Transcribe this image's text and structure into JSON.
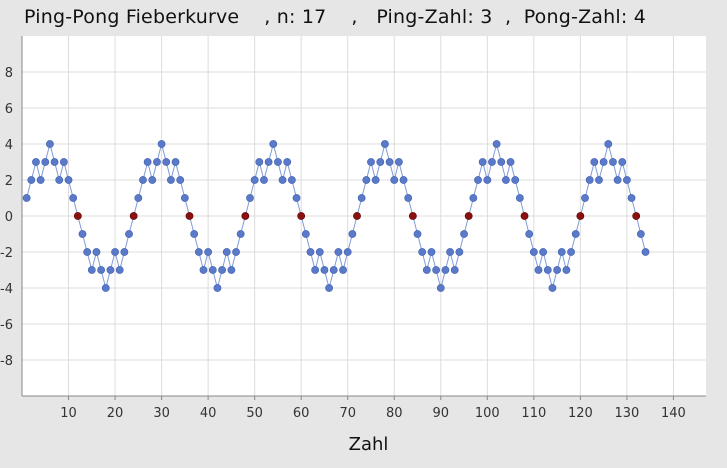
{
  "chart_data": {
    "type": "line",
    "title": "Ping-Pong Fieberkurve    , n: 17    ,   Ping-Zahl: 3  ,  Pong-Zahl: 4",
    "xlabel": "Zahl",
    "ylabel": "",
    "xlim": [
      0,
      147
    ],
    "ylim": [
      -10,
      10
    ],
    "x_ticks": [
      10,
      20,
      30,
      40,
      50,
      60,
      70,
      80,
      90,
      100,
      110,
      120,
      130,
      140
    ],
    "y_ticks": [
      8,
      6,
      4,
      2,
      0,
      -2,
      -4,
      -6,
      -8
    ],
    "grid": true,
    "colors": {
      "line": "#7f9cd8",
      "point": "#5a79c8",
      "zero_point": "#8b1010",
      "plot_background": "#ffffff",
      "grid": "#dcdcdc"
    },
    "series": [
      {
        "x": [
          1,
          2,
          3,
          4,
          5,
          6,
          7,
          8,
          9,
          10,
          11,
          12,
          13,
          14,
          15,
          16,
          17,
          18,
          19,
          20,
          21,
          22,
          23,
          24,
          25,
          26,
          27,
          28,
          29,
          30,
          31,
          32,
          33,
          34,
          35,
          36,
          37,
          38,
          39,
          40,
          41,
          42,
          43,
          44,
          45,
          46,
          47,
          48,
          49,
          50,
          51,
          52,
          53,
          54,
          55,
          56,
          57,
          58,
          59,
          60,
          61,
          62,
          63,
          64,
          65,
          66,
          67,
          68,
          69,
          70,
          71,
          72,
          73,
          74,
          75,
          76,
          77,
          78,
          79,
          80,
          81,
          82,
          83,
          84,
          85,
          86,
          87,
          88,
          89,
          90,
          91,
          92,
          93,
          94,
          95,
          96,
          97,
          98,
          99,
          100,
          101,
          102,
          103,
          104,
          105,
          106,
          107,
          108,
          109,
          110,
          111,
          112,
          113,
          114,
          115,
          116,
          117,
          118,
          119,
          120,
          121,
          122,
          123,
          124,
          125,
          126,
          127,
          128,
          129,
          130,
          131,
          132,
          133,
          134
        ],
        "values": [
          1,
          2,
          3,
          2,
          3,
          4,
          3,
          2,
          3,
          2,
          1,
          0,
          -1,
          -2,
          -3,
          -2,
          -3,
          -4,
          -3,
          -2,
          -3,
          -2,
          -1,
          0,
          1,
          2,
          3,
          2,
          3,
          4,
          3,
          2,
          3,
          2,
          1,
          0,
          -1,
          -2,
          -3,
          -2,
          -3,
          -4,
          -3,
          -2,
          -3,
          -2,
          -1,
          0,
          1,
          2,
          3,
          2,
          3,
          4,
          3,
          2,
          3,
          2,
          1,
          0,
          -1,
          -2,
          -3,
          -2,
          -3,
          -4,
          -3,
          -2,
          -3,
          -2,
          -1,
          0,
          1,
          2,
          3,
          2,
          3,
          4,
          3,
          2,
          3,
          2,
          1,
          0,
          -1,
          -2,
          -3,
          -2,
          -3,
          -4,
          -3,
          -2,
          -3,
          -2,
          -1,
          0,
          1,
          2,
          3,
          2,
          3,
          4,
          3,
          2,
          3,
          2,
          1,
          0,
          -1,
          -2,
          -3,
          -2,
          -3,
          -4,
          -3,
          -2,
          -3,
          -2,
          -1,
          0,
          1,
          2,
          3,
          2,
          3,
          4,
          3,
          2,
          3,
          2,
          1,
          0,
          -1,
          -2
        ]
      }
    ]
  }
}
